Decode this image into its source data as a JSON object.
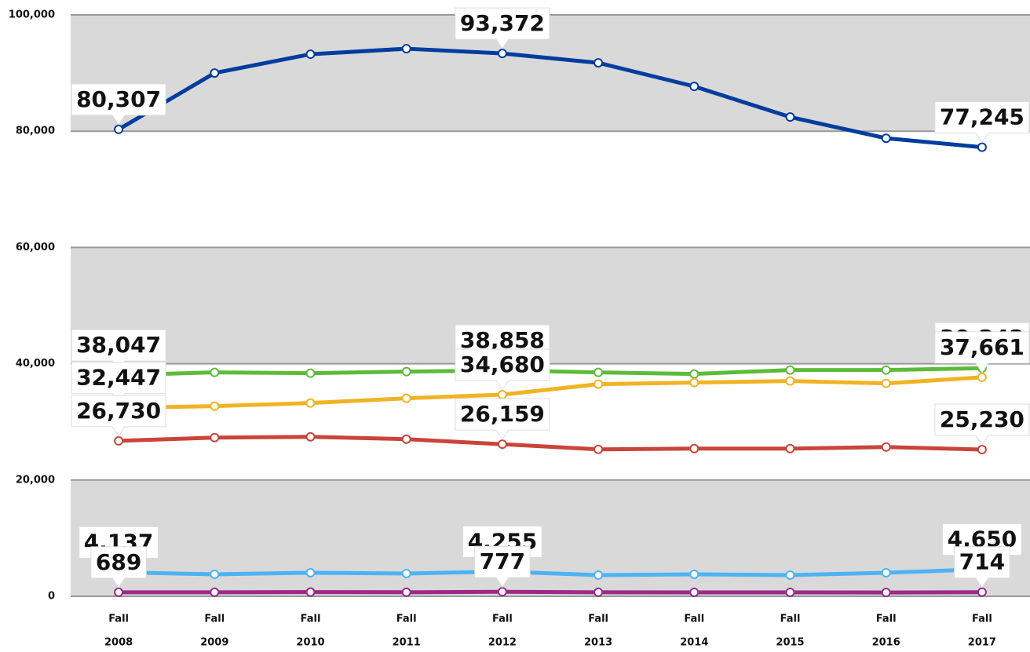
{
  "chart_data": {
    "type": "line",
    "categories": [
      [
        "Fall",
        "2008"
      ],
      [
        "Fall",
        "2009"
      ],
      [
        "Fall",
        "2010"
      ],
      [
        "Fall",
        "2011"
      ],
      [
        "Fall",
        "2012"
      ],
      [
        "Fall",
        "2013"
      ],
      [
        "Fall",
        "2014"
      ],
      [
        "Fall",
        "2015"
      ],
      [
        "Fall",
        "2016"
      ],
      [
        "Fall",
        "2017"
      ]
    ],
    "series": [
      {
        "color": "#003d9e",
        "values": [
          80307,
          90000,
          93243,
          94189,
          93372,
          91757,
          87703,
          82432,
          78784,
          77245
        ],
        "value_labels": [
          "80,307",
          null,
          null,
          null,
          "93,372",
          null,
          null,
          null,
          null,
          "77,245"
        ]
      },
      {
        "color": "#5dbb3a",
        "values": [
          38047,
          38514,
          38378,
          38649,
          38858,
          38514,
          38243,
          38919,
          38919,
          39242
        ],
        "value_labels": [
          "38,047",
          null,
          null,
          null,
          "38,858",
          null,
          null,
          null,
          null,
          "39,242"
        ]
      },
      {
        "color": "#f0b323",
        "values": [
          32447,
          32703,
          33243,
          34054,
          34680,
          36486,
          36757,
          37027,
          36622,
          37661
        ],
        "value_labels": [
          "32,447",
          null,
          null,
          null,
          "34,680",
          null,
          null,
          null,
          null,
          "37,661"
        ]
      },
      {
        "color": "#c9443a",
        "values": [
          26730,
          27297,
          27432,
          27027,
          26159,
          25270,
          25405,
          25405,
          25676,
          25230
        ],
        "value_labels": [
          "26,730",
          null,
          null,
          null,
          "26,159",
          null,
          null,
          null,
          null,
          "25,230"
        ]
      },
      {
        "color": "#4db3f5",
        "values": [
          4137,
          3784,
          4054,
          3919,
          4255,
          3649,
          3784,
          3649,
          4054,
          4650
        ],
        "value_labels": [
          "4,137",
          null,
          null,
          null,
          "4,255",
          null,
          null,
          null,
          null,
          "4,650"
        ]
      },
      {
        "color": "#9b2a8a",
        "values": [
          689,
          700,
          720,
          700,
          777,
          700,
          680,
          680,
          650,
          714
        ],
        "value_labels": [
          "689",
          null,
          null,
          null,
          "777",
          null,
          null,
          null,
          null,
          "714"
        ]
      }
    ],
    "ylim": [
      0,
      100000
    ],
    "yticks": [
      0,
      {
        "value": 20000,
        "label": "20,000"
      },
      {
        "value": 40000,
        "label": "40,000"
      },
      {
        "value": 60000,
        "label": "60,000"
      },
      {
        "value": 80000,
        "label": "80,000"
      },
      {
        "value": 100000,
        "label": "100,000"
      }
    ],
    "grid": true,
    "band_color": "#d9d9d9"
  }
}
